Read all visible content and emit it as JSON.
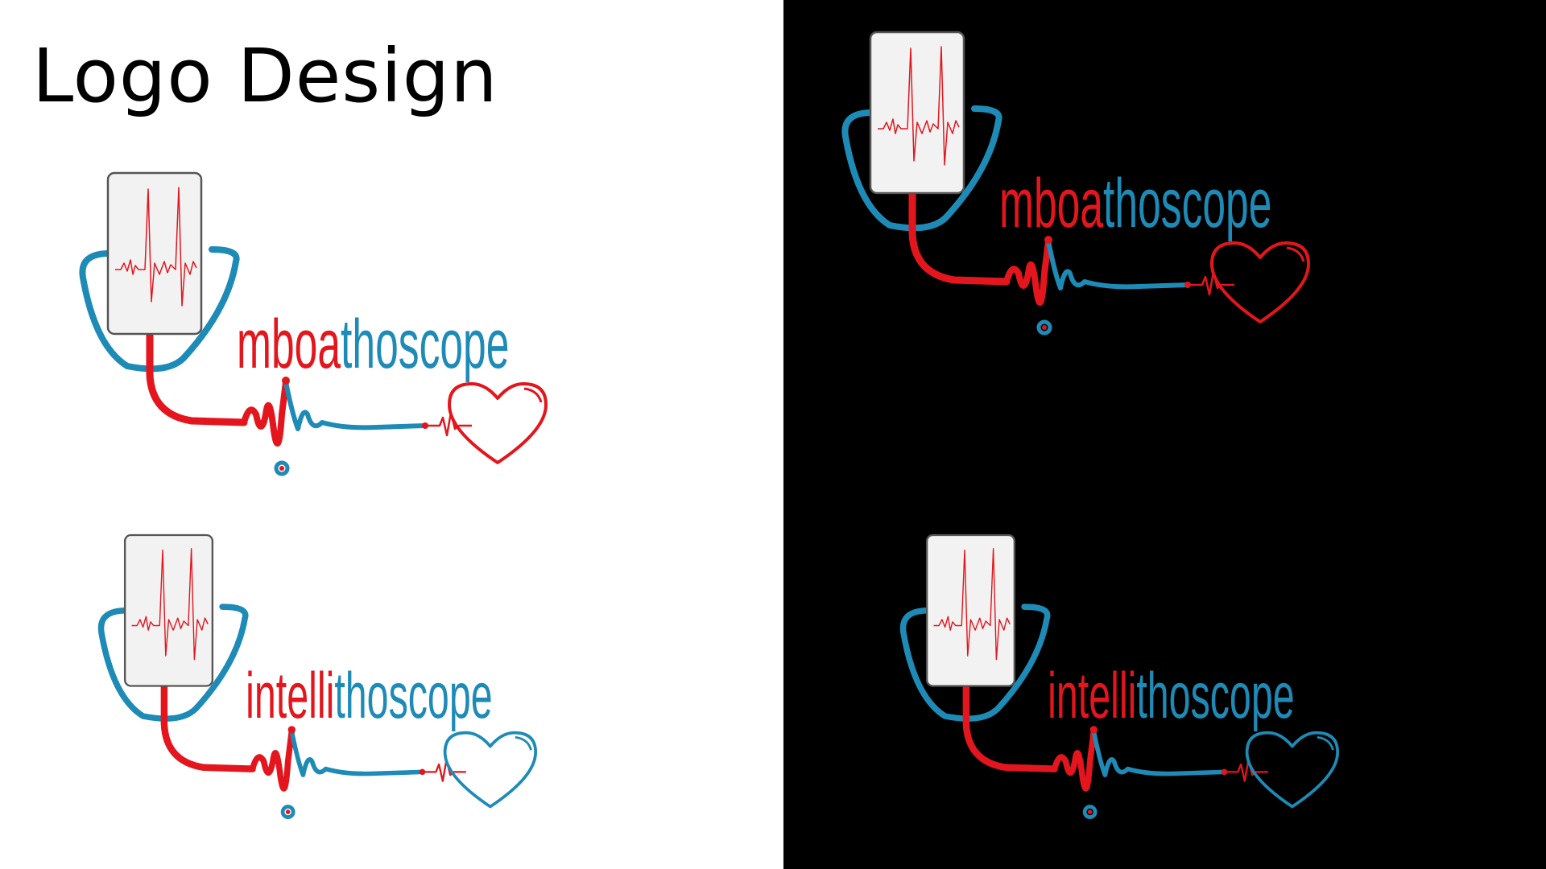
{
  "page": {
    "title": "Logo Design"
  },
  "colors": {
    "red": "#e3161d",
    "blue": "#1e8bb7",
    "light_background": "#ffffff",
    "dark_background": "#000000",
    "device_fill": "#f2f2f2",
    "device_stroke": "#555555"
  },
  "logos": [
    {
      "id": "mboathoscope-light",
      "prefix": "mbo",
      "accent": "a",
      "suffix": "thoscope",
      "heart_color": "red",
      "background": "light"
    },
    {
      "id": "intellithoscope-light",
      "prefix": "intelli",
      "accent": "",
      "suffix": "thoscope",
      "heart_color": "blue",
      "background": "light"
    },
    {
      "id": "mboathoscope-dark",
      "prefix": "mbo",
      "accent": "a",
      "suffix": "thoscope",
      "heart_color": "red",
      "background": "dark"
    },
    {
      "id": "intellithoscope-dark",
      "prefix": "intelli",
      "accent": "",
      "suffix": "thoscope",
      "heart_color": "blue",
      "background": "dark"
    }
  ]
}
